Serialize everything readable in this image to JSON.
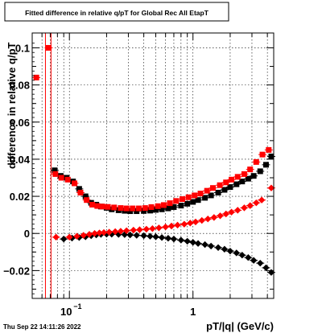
{
  "chart_data": {
    "type": "scatter",
    "title": "Fitted difference in relative q/pT for Global Rec All EtapT",
    "xlabel": "pT/|q| (GeV/c)",
    "ylabel": "difference in relative q/pT",
    "timestamp": "Thu Sep 22 14:11:26 2022",
    "x_scale": "log",
    "xlim": [
      0.05,
      4.5
    ],
    "ylim": [
      -0.035,
      0.108
    ],
    "x_ticks": [
      {
        "value": 0.1,
        "base": "10",
        "exp": "−1"
      },
      {
        "value": 1,
        "label": "1"
      }
    ],
    "y_ticks": [
      {
        "value": 0.1,
        "label": "0.1"
      },
      {
        "value": 0.08,
        "label": "0.08"
      },
      {
        "value": 0.06,
        "label": "0.06"
      },
      {
        "value": 0.04,
        "label": "0.04"
      },
      {
        "value": 0.02,
        "label": "0.02"
      },
      {
        "value": 0,
        "label": "0"
      },
      {
        "value": -0.02,
        "label": "−0.02"
      }
    ],
    "grid": true,
    "colors": {
      "red": "#ff0000",
      "black": "#000000"
    },
    "vertical_lines_x": [
      0.064,
      0.071
    ],
    "series": [
      {
        "marker": "square",
        "color": "#000000",
        "x": [
          0.076,
          0.085,
          0.095,
          0.107,
          0.12,
          0.135,
          0.15,
          0.165,
          0.18,
          0.2,
          0.22,
          0.25,
          0.28,
          0.31,
          0.35,
          0.4,
          0.45,
          0.5,
          0.56,
          0.63,
          0.7,
          0.8,
          0.9,
          1.0,
          1.1,
          1.25,
          1.4,
          1.6,
          1.8,
          2.0,
          2.25,
          2.5,
          2.8,
          3.1,
          3.5,
          3.9,
          4.3
        ],
        "y": [
          0.034,
          0.031,
          0.03,
          0.028,
          0.024,
          0.02,
          0.0165,
          0.0155,
          0.0145,
          0.0138,
          0.013,
          0.0125,
          0.0122,
          0.012,
          0.012,
          0.0121,
          0.0123,
          0.0127,
          0.013,
          0.0135,
          0.0142,
          0.015,
          0.016,
          0.017,
          0.018,
          0.0192,
          0.0205,
          0.022,
          0.0235,
          0.025,
          0.0265,
          0.028,
          0.0295,
          0.031,
          0.0335,
          0.037,
          0.0415
        ]
      },
      {
        "marker": "square",
        "color": "#ff0000",
        "x": [
          0.054,
          0.068,
          0.077,
          0.086,
          0.097,
          0.11,
          0.123,
          0.138,
          0.153,
          0.168,
          0.185,
          0.205,
          0.23,
          0.26,
          0.29,
          0.325,
          0.365,
          0.41,
          0.46,
          0.52,
          0.58,
          0.65,
          0.73,
          0.82,
          0.92,
          1.03,
          1.15,
          1.3,
          1.45,
          1.65,
          1.85,
          2.05,
          2.3,
          2.6,
          2.9,
          3.25,
          3.65,
          4.1
        ],
        "y": [
          0.084,
          0.1,
          0.032,
          0.03,
          0.029,
          0.027,
          0.022,
          0.018,
          0.0155,
          0.0148,
          0.0145,
          0.0143,
          0.014,
          0.0137,
          0.0135,
          0.0135,
          0.0135,
          0.0137,
          0.0142,
          0.0147,
          0.0153,
          0.0163,
          0.0175,
          0.0185,
          0.0195,
          0.0205,
          0.0215,
          0.023,
          0.0245,
          0.026,
          0.0275,
          0.029,
          0.0305,
          0.032,
          0.0345,
          0.0385,
          0.0425,
          0.045
        ]
      },
      {
        "marker": "diamond",
        "color": "#000000",
        "x": [
          0.09,
          0.105,
          0.12,
          0.135,
          0.15,
          0.165,
          0.18,
          0.2,
          0.22,
          0.25,
          0.28,
          0.31,
          0.35,
          0.4,
          0.45,
          0.5,
          0.56,
          0.63,
          0.7,
          0.8,
          0.9,
          1.0,
          1.1,
          1.25,
          1.4,
          1.6,
          1.8,
          2.0,
          2.25,
          2.5,
          2.8,
          3.1,
          3.5,
          3.9,
          4.3
        ],
        "y": [
          -0.003,
          -0.0025,
          -0.0022,
          -0.0018,
          -0.0012,
          -0.0008,
          -0.0005,
          -0.0004,
          -0.0004,
          -0.0005,
          -0.0006,
          -0.0008,
          -0.001,
          -0.0012,
          -0.0015,
          -0.0018,
          -0.0022,
          -0.0026,
          -0.003,
          -0.0036,
          -0.0042,
          -0.0048,
          -0.0054,
          -0.006,
          -0.0068,
          -0.0076,
          -0.0085,
          -0.0095,
          -0.0105,
          -0.0117,
          -0.013,
          -0.0145,
          -0.016,
          -0.0185,
          -0.021
        ]
      },
      {
        "marker": "diamond",
        "color": "#ff0000",
        "x": [
          0.078,
          0.1,
          0.115,
          0.13,
          0.145,
          0.16,
          0.175,
          0.19,
          0.21,
          0.235,
          0.26,
          0.29,
          0.33,
          0.37,
          0.42,
          0.47,
          0.53,
          0.6,
          0.67,
          0.75,
          0.85,
          0.95,
          1.05,
          1.18,
          1.32,
          1.48,
          1.66,
          1.85,
          2.05,
          2.3,
          2.6,
          2.9,
          3.25,
          3.6,
          4.3
        ],
        "y": [
          -0.002,
          -0.002,
          -0.0015,
          -0.001,
          -0.0005,
          0.0,
          0.0003,
          0.0005,
          0.0007,
          0.001,
          0.0012,
          0.0015,
          0.0018,
          0.002,
          0.0023,
          0.0026,
          0.003,
          0.0035,
          0.004,
          0.0045,
          0.005,
          0.0056,
          0.0062,
          0.007,
          0.0078,
          0.0086,
          0.0095,
          0.0105,
          0.0115,
          0.0125,
          0.0138,
          0.015,
          0.0165,
          0.018,
          0.0245
        ]
      }
    ]
  }
}
